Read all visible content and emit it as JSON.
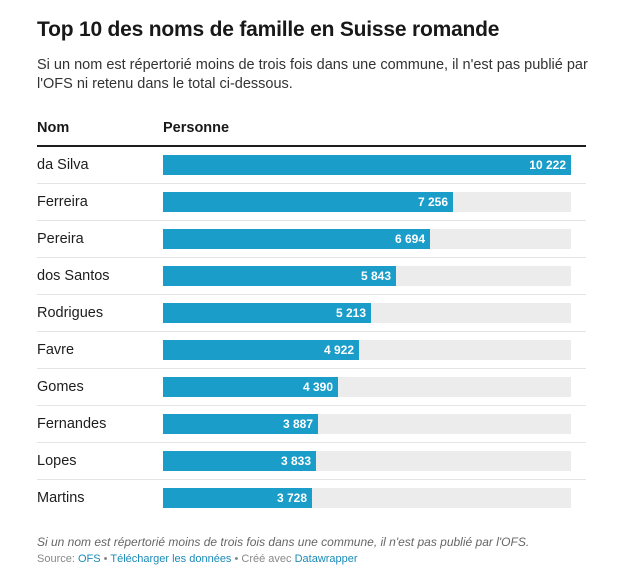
{
  "header": {
    "title": "Top 10 des noms de famille en Suisse romande",
    "subtitle": "Si un nom est répertorié moins de trois fois dans une commune, il n'est pas publié par l'OFS ni retenu dans le total ci-dessous."
  },
  "table": {
    "col_name": "Nom",
    "col_value": "Personne"
  },
  "colors": {
    "bar": "#1b9dc9",
    "track": "#ececec"
  },
  "chart_data": {
    "type": "bar",
    "orientation": "horizontal",
    "title": "Top 10 des noms de famille en Suisse romande",
    "categories": [
      "da Silva",
      "Ferreira",
      "Pereira",
      "dos Santos",
      "Rodrigues",
      "Favre",
      "Gomes",
      "Fernandes",
      "Lopes",
      "Martins"
    ],
    "values": [
      10222,
      7256,
      6694,
      5843,
      5213,
      4922,
      4390,
      3887,
      3833,
      3728
    ],
    "value_labels": [
      "10 222",
      "7 256",
      "6 694",
      "5 843",
      "5 213",
      "4 922",
      "4 390",
      "3 887",
      "3 833",
      "3 728"
    ],
    "xlim": [
      0,
      10222
    ],
    "grid": false
  },
  "footer": {
    "note": "Si un nom est répertorié moins de trois fois dans une commune, il n'est pas publié par l'OFS.",
    "source_label": "Source: ",
    "source_link": "OFS",
    "sep1": " • ",
    "download_link": "Télécharger les données",
    "sep2": " • Créé avec ",
    "tool_link": "Datawrapper"
  }
}
